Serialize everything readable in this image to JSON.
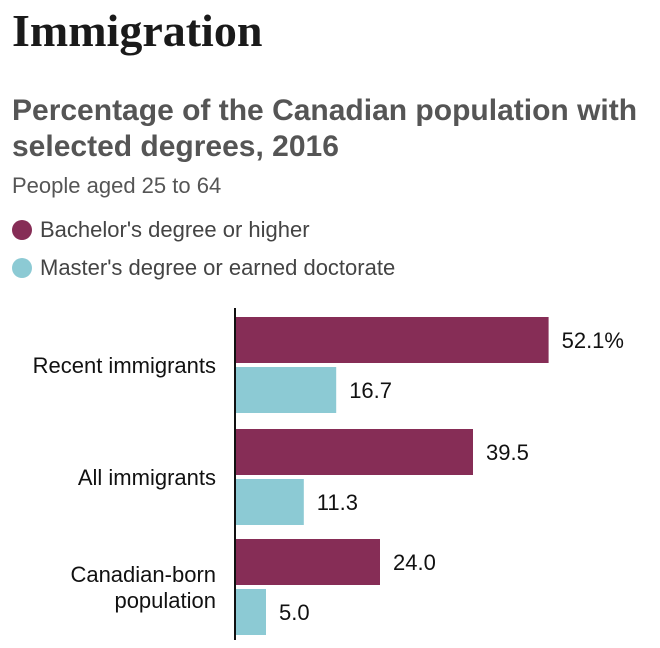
{
  "header": {
    "title": "Immigration"
  },
  "chart_data": {
    "type": "bar",
    "orientation": "horizontal",
    "title": "Percentage of the Canadian population with selected degrees, 2016",
    "subtitle": "People aged 25 to 64",
    "categories": [
      [
        "Recent immigrants"
      ],
      [
        "All immigrants"
      ],
      [
        "Canadian-born",
        "population"
      ]
    ],
    "series": [
      {
        "name": "Bachelor's degree or higher",
        "color": "#862d56",
        "values": [
          52.1,
          39.5,
          24.0
        ],
        "labels": [
          "52.1%",
          "39.5",
          "24.0"
        ]
      },
      {
        "name": "Master's degree or earned doctorate",
        "color": "#8ccad4",
        "values": [
          16.7,
          11.3,
          5.0
        ],
        "labels": [
          "16.7",
          "11.3",
          "5.0"
        ]
      }
    ],
    "xlim": [
      0,
      55
    ],
    "grid": false,
    "legend_position": "top-left"
  }
}
